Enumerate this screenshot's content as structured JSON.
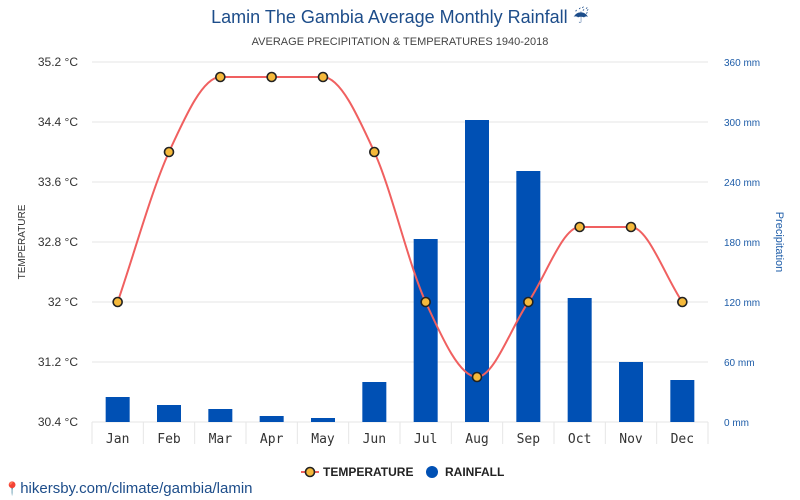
{
  "title": "Lamin The Gambia Average Monthly Rainfall",
  "title_icon": "umbrella-rain-icon",
  "subtitle": "AVERAGE PRECIPITATION & TEMPERATURES 1940-2018",
  "footer": {
    "icon": "location-pin-icon",
    "link": "hikersby.com/climate/gambia/lamin"
  },
  "chart_data": {
    "type": "bar",
    "categories": [
      "Jan",
      "Feb",
      "Mar",
      "Apr",
      "May",
      "Jun",
      "Jul",
      "Aug",
      "Sep",
      "Oct",
      "Nov",
      "Dec"
    ],
    "series": [
      {
        "name": "RAINFALL",
        "type": "bar",
        "axis": "right",
        "color": "#0050b4",
        "values": [
          25,
          17,
          13,
          6,
          4,
          40,
          183,
          302,
          251,
          124,
          60,
          42
        ]
      },
      {
        "name": "TEMPERATURE",
        "type": "line",
        "axis": "left",
        "color": "#f06060",
        "marker_color": "#f5b93b",
        "values": [
          32,
          34,
          35,
          35,
          35,
          34,
          32,
          31,
          32,
          33,
          33,
          32
        ]
      }
    ],
    "y_left": {
      "label": "TEMPERATURE",
      "range": [
        30.4,
        35.2
      ],
      "ticks": [
        "35.2 °C",
        "34.4 °C",
        "33.6 °C",
        "32.8 °C",
        "32 °C",
        "31.2 °C",
        "30.4 °C"
      ]
    },
    "y_right": {
      "label": "Precipitation",
      "range": [
        0,
        360
      ],
      "ticks": [
        "360 mm",
        "300 mm",
        "240 mm",
        "180 mm",
        "120 mm",
        "60 mm",
        "0 mm"
      ]
    },
    "legend": [
      "TEMPERATURE",
      "RAINFALL"
    ],
    "legend_position": "bottom-center",
    "grid": true
  }
}
